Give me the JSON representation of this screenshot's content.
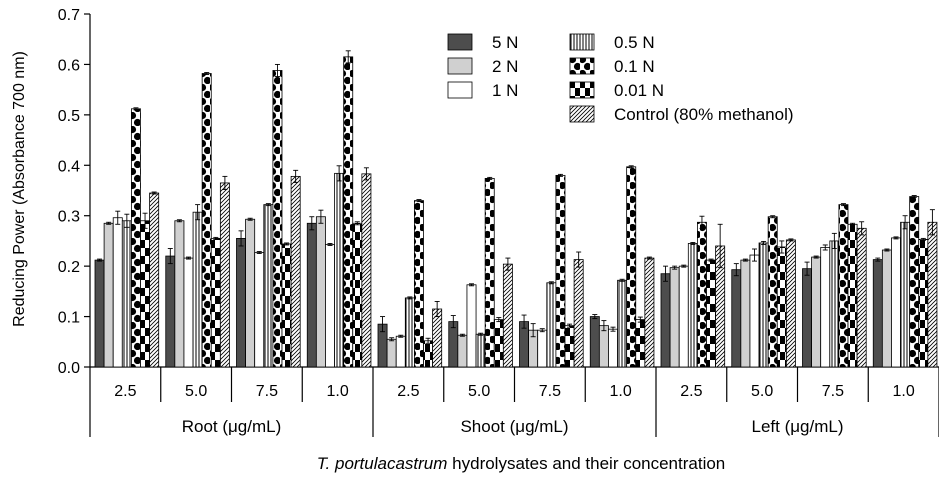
{
  "chart_data": {
    "type": "bar",
    "title": "",
    "ylabel": "Reducing Power (Absorbance 700 nm)",
    "xlabel_italic": "T. portulacastrum",
    "xlabel_rest": " hydrolysates and their concentration",
    "ylim": [
      0,
      0.7
    ],
    "yticks": [
      "0.0",
      "0.1",
      "0.2",
      "0.3",
      "0.4",
      "0.5",
      "0.6",
      "0.7"
    ],
    "groups": [
      {
        "label": "Root (μg/mL)",
        "concentrations": [
          "2.5",
          "5.0",
          "7.5",
          "1.0"
        ]
      },
      {
        "label": "Shoot (μg/mL)",
        "concentrations": [
          "2.5",
          "5.0",
          "7.5",
          "1.0"
        ]
      },
      {
        "label": "Left (μg/mL)",
        "concentrations": [
          "2.5",
          "5.0",
          "7.5",
          "1.0"
        ]
      }
    ],
    "legend_position": "top-right",
    "series": [
      {
        "name": "5 N",
        "pattern": "dark-gray",
        "values": [
          0.212,
          0.22,
          0.255,
          0.285,
          0.085,
          0.09,
          0.09,
          0.1,
          0.185,
          0.193,
          0.195,
          0.213
        ],
        "errors": [
          0.002,
          0.015,
          0.015,
          0.013,
          0.015,
          0.012,
          0.013,
          0.004,
          0.015,
          0.012,
          0.013,
          0.003
        ]
      },
      {
        "name": "2 N",
        "pattern": "light-gray",
        "values": [
          0.285,
          0.29,
          0.293,
          0.298,
          0.055,
          0.063,
          0.073,
          0.082,
          0.197,
          0.212,
          0.218,
          0.232
        ],
        "errors": [
          0.002,
          0.002,
          0.002,
          0.013,
          0.003,
          0.002,
          0.013,
          0.01,
          0.003,
          0.002,
          0.002,
          0.002
        ]
      },
      {
        "name": "1 N",
        "pattern": "white",
        "values": [
          0.296,
          0.216,
          0.227,
          0.243,
          0.061,
          0.163,
          0.073,
          0.075,
          0.2,
          0.222,
          0.237,
          0.256
        ],
        "errors": [
          0.013,
          0.002,
          0.002,
          0.002,
          0.002,
          0.002,
          0.003,
          0.004,
          0.002,
          0.012,
          0.005,
          0.002
        ]
      },
      {
        "name": "0.5 N",
        "pattern": "vertical-lines",
        "values": [
          0.29,
          0.307,
          0.322,
          0.384,
          0.137,
          0.065,
          0.167,
          0.172,
          0.245,
          0.246,
          0.25,
          0.287
        ],
        "errors": [
          0.013,
          0.015,
          0.002,
          0.015,
          0.002,
          0.002,
          0.002,
          0.002,
          0.002,
          0.003,
          0.015,
          0.013
        ]
      },
      {
        "name": "0.1 N",
        "pattern": "big-dots",
        "values": [
          0.512,
          0.582,
          0.588,
          0.615,
          0.33,
          0.374,
          0.38,
          0.397,
          0.287,
          0.298,
          0.322,
          0.338
        ],
        "errors": [
          0.002,
          0.002,
          0.012,
          0.012,
          0.002,
          0.002,
          0.002,
          0.002,
          0.012,
          0.002,
          0.002,
          0.002
        ]
      },
      {
        "name": "0.01 N",
        "pattern": "checker",
        "values": [
          0.29,
          0.255,
          0.244,
          0.285,
          0.052,
          0.094,
          0.082,
          0.094,
          0.212,
          0.238,
          0.283,
          0.253
        ],
        "errors": [
          0.015,
          0.002,
          0.002,
          0.003,
          0.005,
          0.004,
          0.003,
          0.005,
          0.002,
          0.012,
          0.002,
          0.002
        ]
      },
      {
        "name": "Control (80% methanol)",
        "pattern": "diagonal-lines",
        "values": [
          0.345,
          0.365,
          0.378,
          0.383,
          0.115,
          0.204,
          0.213,
          0.216,
          0.24,
          0.252,
          0.275,
          0.287
        ],
        "errors": [
          0.002,
          0.013,
          0.012,
          0.012,
          0.015,
          0.012,
          0.015,
          0.002,
          0.043,
          0.002,
          0.013,
          0.025
        ]
      }
    ]
  }
}
